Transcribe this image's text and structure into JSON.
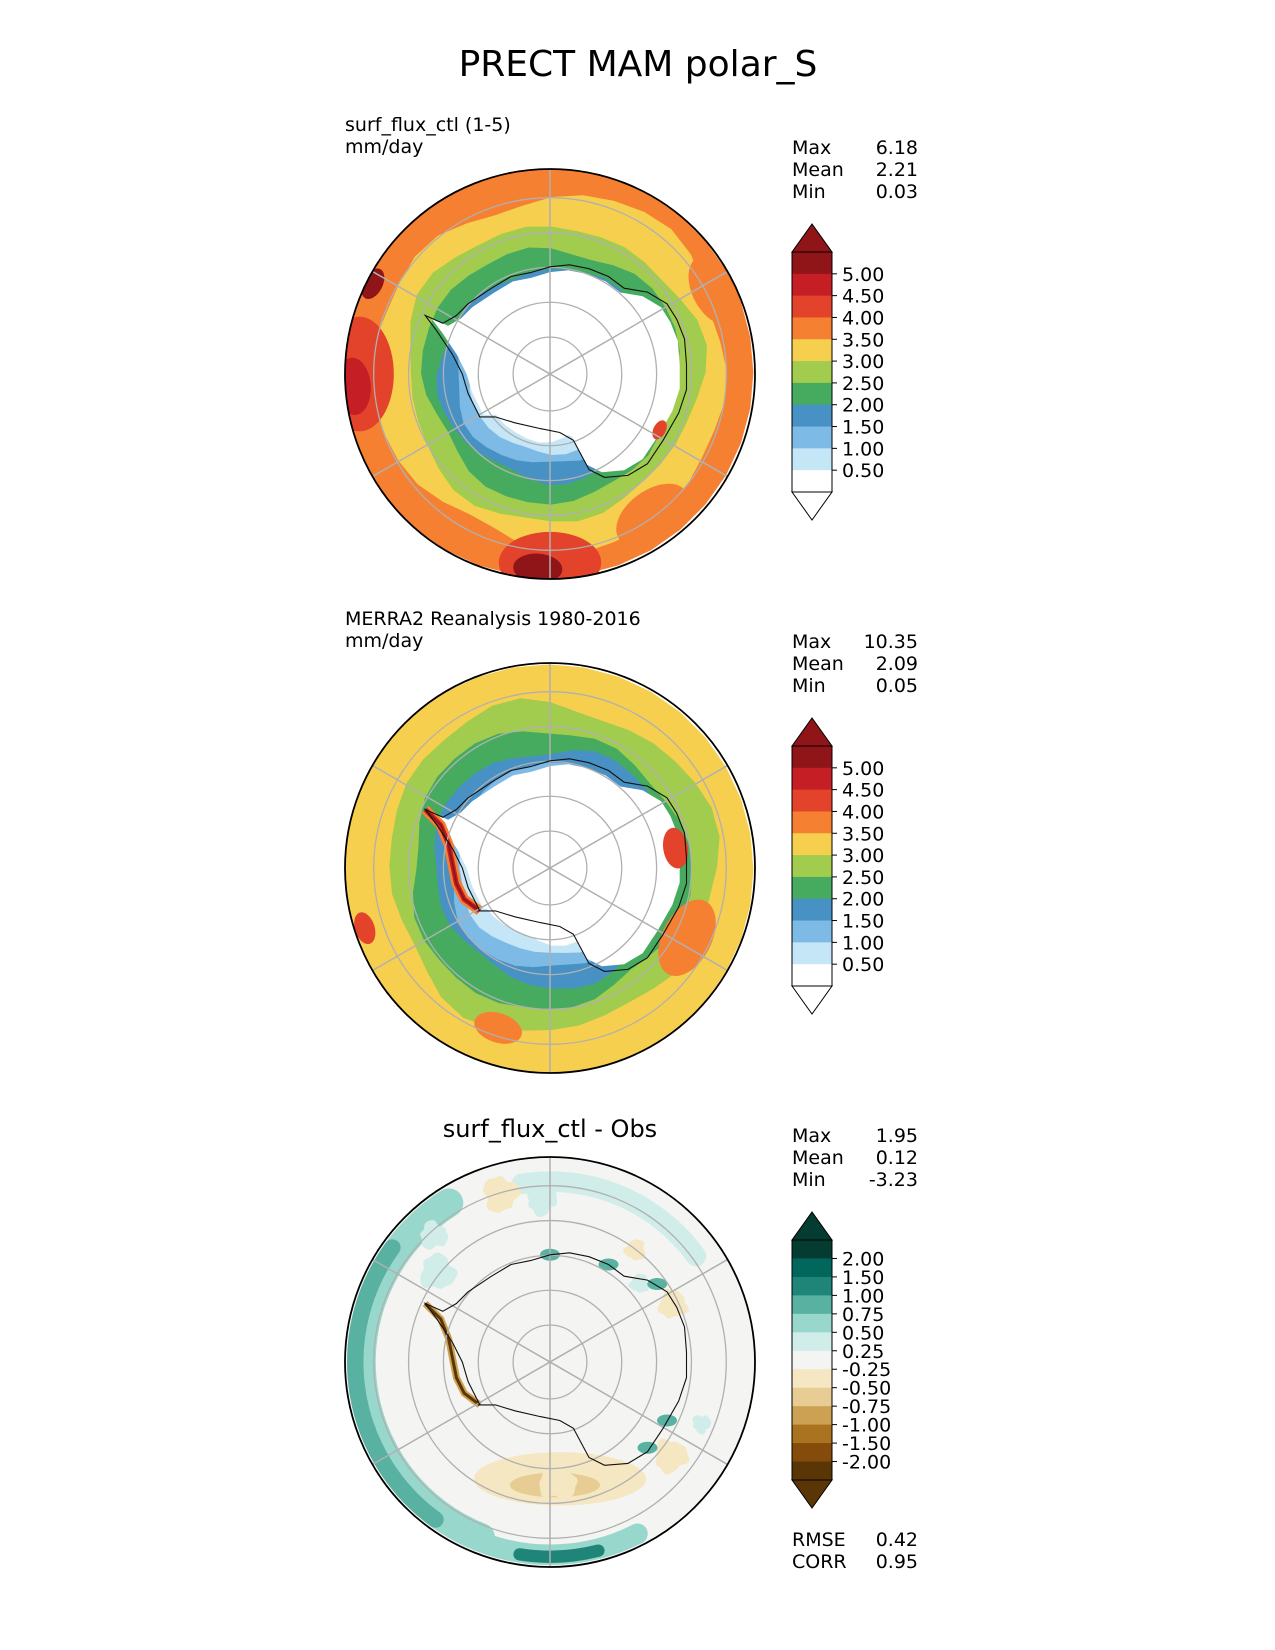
{
  "figure": {
    "title": "PRECT MAM polar_S"
  },
  "palettes": {
    "prect": [
      "#ffffff",
      "#c4e6f7",
      "#7dbbe6",
      "#4891c5",
      "#46ab5f",
      "#a2cc4e",
      "#f7cf4f",
      "#f68032",
      "#e4432b",
      "#c51f25",
      "#8f1518"
    ],
    "diff": [
      "#5a3607",
      "#854b0b",
      "#a9731f",
      "#cda153",
      "#e7cd94",
      "#f6e7c3",
      "#f4f4f2",
      "#d1ede9",
      "#98d7cb",
      "#58b1a1",
      "#208579",
      "#01675c",
      "#043c32"
    ]
  },
  "panels": [
    {
      "id": "test",
      "left_label": "surf_flux_ctl (1-5)",
      "units": "mm/day",
      "center_title": "",
      "stats": [
        {
          "label": "Max",
          "value": "6.18"
        },
        {
          "label": "Mean",
          "value": "2.21"
        },
        {
          "label": "Min",
          "value": "0.03"
        }
      ],
      "colorbar_ticks": [
        "5.00",
        "4.50",
        "4.00",
        "3.50",
        "3.00",
        "2.50",
        "2.00",
        "1.50",
        "1.00",
        "0.50"
      ],
      "palette": "prect",
      "bottom_stats": []
    },
    {
      "id": "reference",
      "left_label": "MERRA2 Reanalysis 1980-2016",
      "units": "mm/day",
      "center_title": "",
      "stats": [
        {
          "label": "Max",
          "value": "10.35"
        },
        {
          "label": "Mean",
          "value": "2.09"
        },
        {
          "label": "Min",
          "value": "0.05"
        }
      ],
      "colorbar_ticks": [
        "5.00",
        "4.50",
        "4.00",
        "3.50",
        "3.00",
        "2.50",
        "2.00",
        "1.50",
        "1.00",
        "0.50"
      ],
      "palette": "prect",
      "bottom_stats": []
    },
    {
      "id": "difference",
      "left_label": "",
      "units": "",
      "center_title": "surf_flux_ctl - Obs",
      "stats": [
        {
          "label": "Max",
          "value": "1.95"
        },
        {
          "label": "Mean",
          "value": "0.12"
        },
        {
          "label": "Min",
          "value": "-3.23"
        }
      ],
      "colorbar_ticks": [
        "2.00",
        "1.50",
        "1.00",
        "0.75",
        "0.50",
        "0.25",
        "-0.25",
        "-0.50",
        "-0.75",
        "-1.00",
        "-1.50",
        "-2.00"
      ],
      "palette": "diff",
      "bottom_stats": [
        {
          "label": "RMSE",
          "value": "0.42"
        },
        {
          "label": "CORR",
          "value": "0.95"
        }
      ]
    }
  ]
}
